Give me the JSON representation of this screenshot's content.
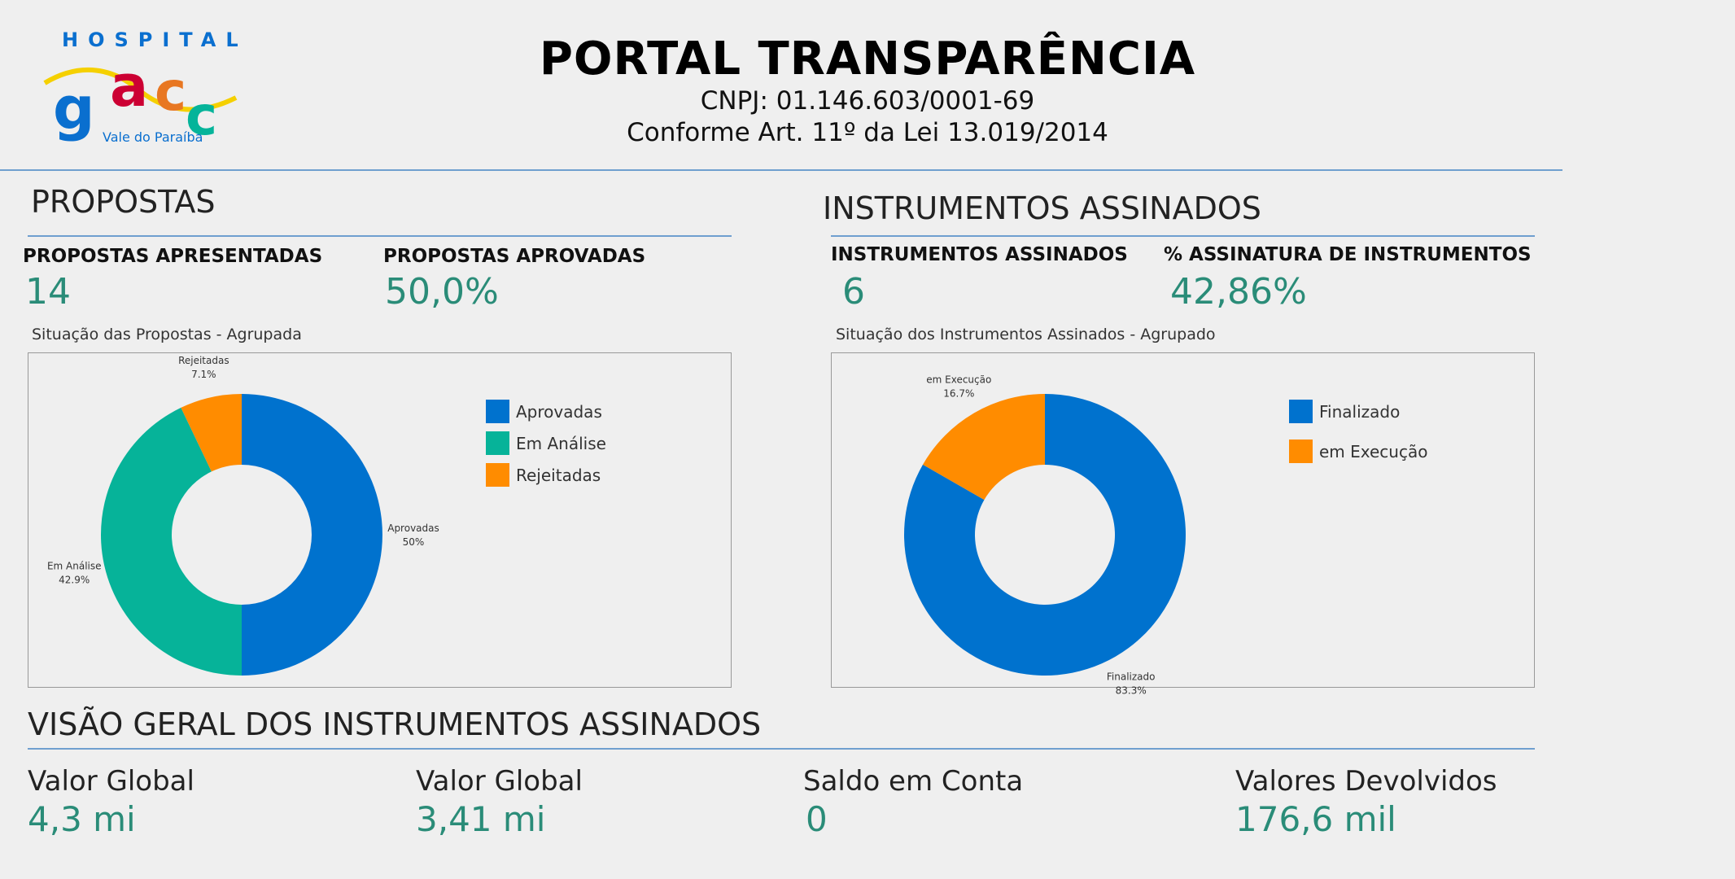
{
  "logo": {
    "top": "HOSPITAL",
    "mark": "gacc",
    "bottom": "Vale do Paraíba"
  },
  "header": {
    "title": "PORTAL TRANSPARÊNCIA",
    "cnpj": "CNPJ: 01.146.603/0001-69",
    "law": "Conforme Art. 11º da Lei 13.019/2014"
  },
  "propostas": {
    "heading": "PROPOSTAS",
    "kpis": [
      {
        "label": "PROPOSTAS APRESENTADAS",
        "value": "14"
      },
      {
        "label": "PROPOSTAS APROVADAS",
        "value": "50,0%"
      }
    ],
    "chart_title": "Situação das Propostas - Agrupada"
  },
  "instrumentos": {
    "heading": "INSTRUMENTOS ASSINADOS",
    "kpis": [
      {
        "label": "INSTRUMENTOS ASSINADOS",
        "value": "6"
      },
      {
        "label": "% ASSINATURA DE INSTRUMENTOS",
        "value": "42,86%"
      }
    ],
    "chart_title": "Situação dos Instrumentos Assinados - Agrupado"
  },
  "chart_data": [
    {
      "type": "pie",
      "donut": true,
      "title": "Situação das Propostas - Agrupada",
      "legend": "right",
      "categories": [
        "Aprovadas",
        "Em Análise",
        "Rejeitadas"
      ],
      "values": [
        50,
        42.9,
        7.1
      ],
      "labels": [
        "50%",
        "42.9%",
        "7.1%"
      ],
      "colors": [
        "#0072ce",
        "#06b399",
        "#ff8c00"
      ]
    },
    {
      "type": "pie",
      "donut": true,
      "title": "Situação dos Instrumentos Assinados - Agrupado",
      "legend": "right",
      "categories": [
        "Finalizado",
        "em Execução"
      ],
      "values": [
        83.3,
        16.7
      ],
      "labels": [
        "83.3%",
        "16.7%"
      ],
      "colors": [
        "#0072ce",
        "#ff8c00"
      ]
    }
  ],
  "overview": {
    "heading": "VISÃO GERAL DOS INSTRUMENTOS ASSINADOS",
    "cards": [
      {
        "label": "Valor Global",
        "value": "4,3 mi"
      },
      {
        "label": "Valor Global",
        "value": "3,41 mi"
      },
      {
        "label": "Saldo em Conta",
        "value": "0"
      },
      {
        "label": "Valores Devolvidos",
        "value": "176,6 mil"
      }
    ]
  }
}
